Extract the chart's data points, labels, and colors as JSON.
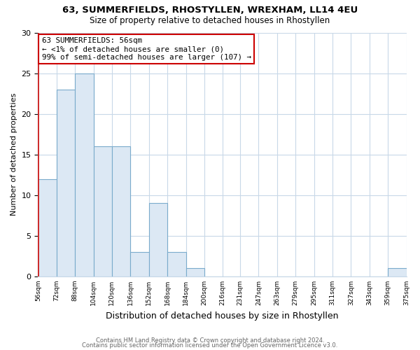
{
  "title1": "63, SUMMERFIELDS, RHOSTYLLEN, WREXHAM, LL14 4EU",
  "title2": "Size of property relative to detached houses in Rhostyllen",
  "xlabel": "Distribution of detached houses by size in Rhostyllen",
  "ylabel": "Number of detached properties",
  "bin_edges": [
    56,
    72,
    88,
    104,
    120,
    136,
    152,
    168,
    184,
    200,
    216,
    231,
    247,
    263,
    279,
    295,
    311,
    327,
    343,
    359,
    375
  ],
  "counts": [
    12,
    23,
    25,
    16,
    16,
    3,
    9,
    3,
    1,
    0,
    0,
    0,
    0,
    0,
    0,
    0,
    0,
    0,
    0,
    1
  ],
  "bar_color": "#dce8f4",
  "bar_edge_color": "#7aabcc",
  "property_line_color": "#cc2222",
  "property_bin": 0,
  "annotation_title": "63 SUMMERFIELDS: 56sqm",
  "annotation_line1": "← <1% of detached houses are smaller (0)",
  "annotation_line2": "99% of semi-detached houses are larger (107) →",
  "annotation_box_color": "#ffffff",
  "annotation_box_edge": "#cc0000",
  "ylim": [
    0,
    30
  ],
  "yticks": [
    0,
    5,
    10,
    15,
    20,
    25,
    30
  ],
  "tick_labels": [
    "56sqm",
    "72sqm",
    "88sqm",
    "104sqm",
    "120sqm",
    "136sqm",
    "152sqm",
    "168sqm",
    "184sqm",
    "200sqm",
    "216sqm",
    "231sqm",
    "247sqm",
    "263sqm",
    "279sqm",
    "295sqm",
    "311sqm",
    "327sqm",
    "343sqm",
    "359sqm",
    "375sqm"
  ],
  "footer1": "Contains HM Land Registry data © Crown copyright and database right 2024.",
  "footer2": "Contains public sector information licensed under the Open Government Licence v3.0.",
  "bg_color": "#ffffff",
  "grid_color": "#c8d8e8"
}
